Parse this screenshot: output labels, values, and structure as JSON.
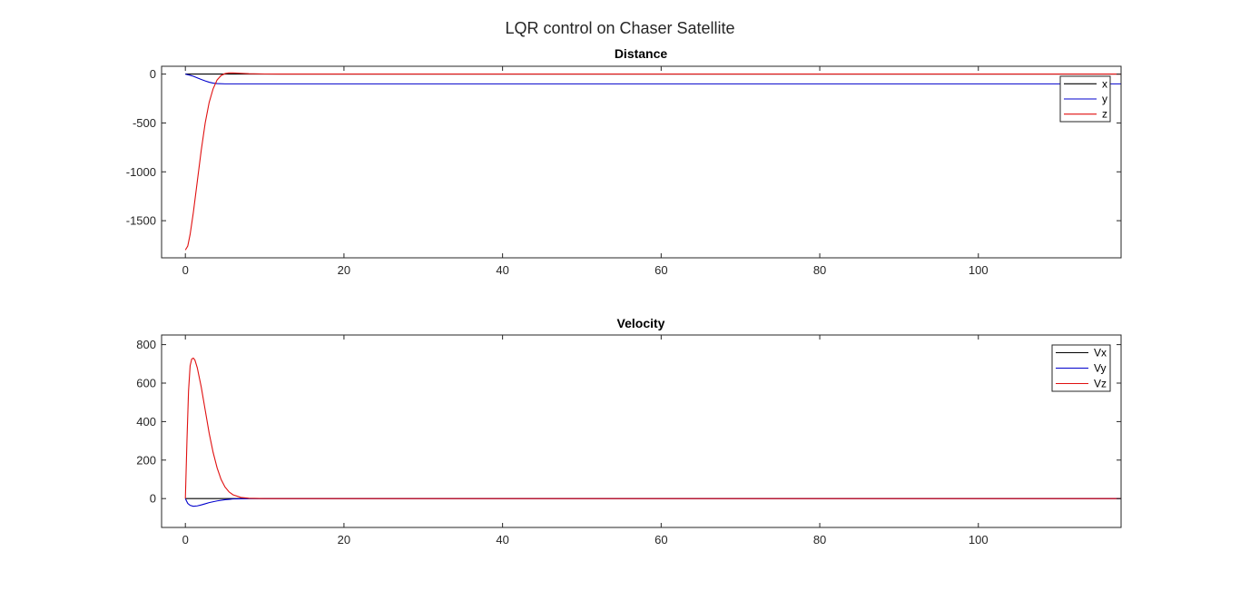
{
  "figure": {
    "title": "LQR control on Chaser Satellite"
  },
  "colors": {
    "x": "#000000",
    "y": "#0000cc",
    "z": "#e01010",
    "axis": "#262626"
  },
  "chart_data": [
    {
      "type": "line",
      "title": "Distance",
      "xlabel": "",
      "ylabel": "",
      "xlim": [
        -3,
        118
      ],
      "ylim": [
        -1880,
        80
      ],
      "xticks": [
        0,
        20,
        40,
        60,
        80,
        100
      ],
      "xtick_labels": [
        "0",
        "20",
        "40",
        "60",
        "80",
        "100"
      ],
      "yticks": [
        0,
        -500,
        -1000,
        -1500
      ],
      "ytick_labels": [
        "0",
        "-500",
        "-1000",
        "-1500"
      ],
      "legend": {
        "position": "top-right"
      },
      "series": [
        {
          "name": "x",
          "color": "#000000",
          "x": [
            0,
            1,
            2,
            3,
            5,
            8,
            12,
            20,
            40,
            60,
            80,
            100,
            118
          ],
          "y": [
            0,
            0,
            0,
            0,
            0,
            0,
            0,
            0,
            0,
            0,
            0,
            0,
            0
          ]
        },
        {
          "name": "y",
          "color": "#0000cc",
          "x": [
            0,
            0.5,
            1,
            1.5,
            2,
            2.5,
            3,
            3.5,
            4,
            5,
            6,
            8,
            10,
            20,
            40,
            60,
            80,
            100,
            118
          ],
          "y": [
            0,
            -10,
            -22,
            -38,
            -55,
            -70,
            -83,
            -92,
            -97,
            -100,
            -100,
            -100,
            -100,
            -100,
            -100,
            -100,
            -100,
            -100,
            -100
          ]
        },
        {
          "name": "z",
          "color": "#e01010",
          "x": [
            0,
            0.3,
            0.6,
            1,
            1.5,
            2,
            2.5,
            3,
            3.5,
            4,
            4.5,
            5,
            5.5,
            6,
            7,
            8,
            10,
            12,
            20,
            40,
            60,
            80,
            100,
            118
          ],
          "y": [
            -1800,
            -1760,
            -1640,
            -1420,
            -1100,
            -780,
            -500,
            -290,
            -150,
            -60,
            -15,
            5,
            12,
            12,
            8,
            4,
            1,
            0,
            0,
            0,
            0,
            0,
            0,
            0
          ]
        }
      ]
    },
    {
      "type": "line",
      "title": "Velocity",
      "xlabel": "",
      "ylabel": "",
      "xlim": [
        -3,
        118
      ],
      "ylim": [
        -150,
        850
      ],
      "xticks": [
        0,
        20,
        40,
        60,
        80,
        100
      ],
      "xtick_labels": [
        "0",
        "20",
        "40",
        "60",
        "80",
        "100"
      ],
      "yticks": [
        0,
        200,
        400,
        600,
        800
      ],
      "ytick_labels": [
        "0",
        "200",
        "400",
        "600",
        "800"
      ],
      "legend": {
        "position": "top-right"
      },
      "series": [
        {
          "name": "Vx",
          "color": "#000000",
          "x": [
            0,
            1,
            2,
            5,
            10,
            20,
            40,
            60,
            80,
            100,
            118
          ],
          "y": [
            0,
            0,
            0,
            0,
            0,
            0,
            0,
            0,
            0,
            0,
            0
          ]
        },
        {
          "name": "Vy",
          "color": "#0000cc",
          "x": [
            0,
            0.3,
            0.6,
            1,
            1.5,
            2,
            2.5,
            3,
            4,
            5,
            6,
            7,
            8,
            10,
            20,
            40,
            60,
            80,
            100,
            118
          ],
          "y": [
            0,
            -25,
            -35,
            -40,
            -38,
            -33,
            -27,
            -21,
            -12,
            -6,
            -2,
            -1,
            0,
            0,
            0,
            0,
            0,
            0,
            0,
            0
          ]
        },
        {
          "name": "Vz",
          "color": "#e01010",
          "x": [
            0,
            0.2,
            0.4,
            0.6,
            0.8,
            1,
            1.2,
            1.5,
            2,
            2.5,
            3,
            3.5,
            4,
            4.5,
            5,
            5.5,
            6,
            7,
            8,
            10,
            20,
            40,
            60,
            80,
            100,
            118
          ],
          "y": [
            0,
            300,
            560,
            690,
            725,
            730,
            720,
            680,
            580,
            460,
            340,
            240,
            160,
            100,
            60,
            35,
            20,
            6,
            2,
            0,
            0,
            0,
            0,
            0,
            0,
            0
          ]
        }
      ]
    }
  ]
}
